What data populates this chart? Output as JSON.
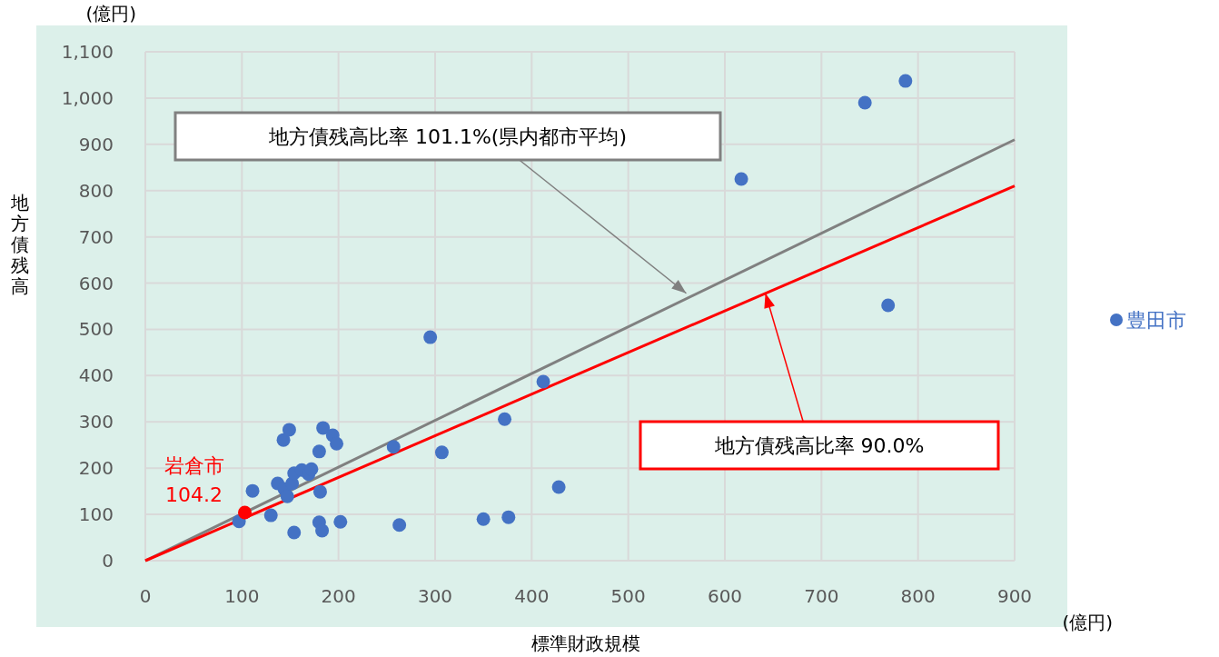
{
  "chart_data": {
    "type": "scatter",
    "xlabel": "標準財政規模",
    "ylabel": "地方債残高",
    "xlim": [
      0,
      900
    ],
    "ylim": [
      0,
      1100
    ],
    "xticks": [
      0,
      100,
      200,
      300,
      400,
      500,
      600,
      700,
      800,
      900
    ],
    "yticks": [
      0,
      100,
      200,
      300,
      400,
      500,
      600,
      700,
      800,
      900,
      {
        "value": 1000,
        "label": "1,000"
      },
      {
        "value": 1100,
        "label": "1,100"
      }
    ],
    "grid": true,
    "legend": "right",
    "series": [
      {
        "name": "豊田市",
        "marker": "circle",
        "color": "#4472c4",
        "x": [
          97,
          111,
          130,
          137,
          143,
          149,
          144,
          147,
          152,
          154,
          154,
          162,
          169,
          172,
          181,
          180,
          180,
          183,
          184,
          194,
          198,
          202,
          257,
          263,
          295,
          307,
          350,
          372,
          376,
          412,
          428,
          617,
          745,
          769,
          787
        ],
        "values": [
          85,
          151,
          98,
          167,
          261,
          283,
          155,
          139,
          167,
          189,
          61,
          196,
          187,
          198,
          149,
          236,
          83,
          65,
          287,
          271,
          253,
          84,
          246,
          77,
          483,
          234,
          90,
          306,
          94,
          387,
          159,
          825,
          990,
          552,
          1037
        ]
      },
      {
        "marker": "circle",
        "color": "#ff0000",
        "x": [
          103
        ],
        "values": [
          104.2
        ],
        "value_labels": [
          "104.2"
        ]
      },
      {
        "type": "line",
        "color": "#808080",
        "x": [
          0,
          900
        ],
        "values": [
          0,
          910
        ]
      },
      {
        "type": "line",
        "color": "#ff0000",
        "x": [
          0,
          900
        ],
        "values": [
          0,
          810
        ]
      }
    ],
    "annotations": [
      "(億円)",
      "(億円)",
      {
        "text": "地方債残高比率 101.1%(県内都市平均)",
        "x": 560,
        "y": 578
      },
      {
        "text": "地方債残高比率 90.0%",
        "x": 642,
        "y": 578
      },
      {
        "text": "岩倉市",
        "x": 103,
        "y": 104.2
      }
    ]
  }
}
